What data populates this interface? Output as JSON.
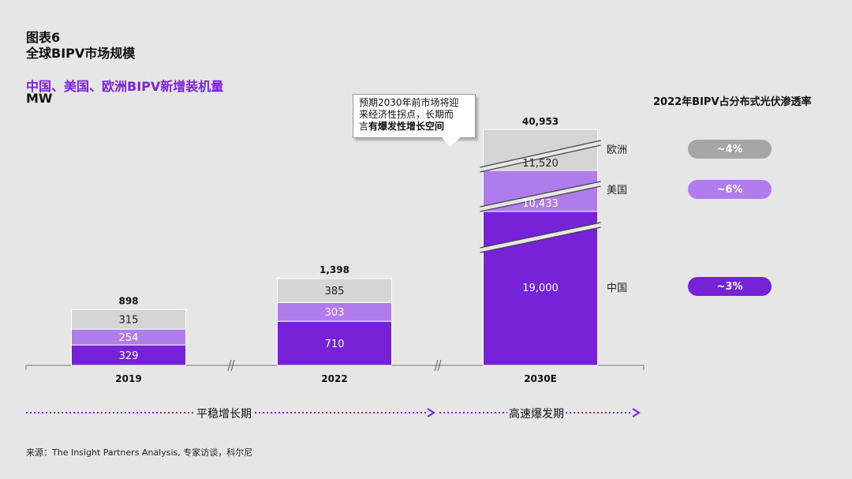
{
  "header": {
    "line1": "图表6",
    "line2": "全球BIPV市场规模",
    "subtitle": "中国、美国、欧洲BIPV新增装机量",
    "unit": "MW"
  },
  "callout": {
    "line1": "预期2030年前市场将迎",
    "line2": "来经济性拐点，长期而",
    "line3_prefix": "言",
    "line3_bold": "有爆发性增长空间"
  },
  "penetration": {
    "title": "2022年BIPV占分布式光伏渗透率",
    "items": [
      {
        "region": "欧洲",
        "value": "~4%",
        "color": "#a6a6a6"
      },
      {
        "region": "美国",
        "value": "~6%",
        "color": "#b07cec"
      },
      {
        "region": "中国",
        "value": "~3%",
        "color": "#7522d9"
      }
    ]
  },
  "phases": {
    "steady": "平稳增长期",
    "explosive": "高速爆发期"
  },
  "source": "来源：The Insight Partners Analysis, 专家访谈，科尔尼",
  "colors": {
    "china": "#7522d9",
    "usa": "#b07cec",
    "europe": "#d5d5d5",
    "accent": "#7a22e0"
  },
  "chart_data": {
    "type": "bar",
    "stacked": true,
    "categories": [
      "2019",
      "2022",
      "2030E"
    ],
    "series": [
      {
        "name": "中国",
        "values": [
          329,
          710,
          19000
        ]
      },
      {
        "name": "美国",
        "values": [
          254,
          303,
          10433
        ]
      },
      {
        "name": "欧洲",
        "values": [
          315,
          385,
          11520
        ]
      }
    ],
    "series_labels": [
      "中国",
      "美国",
      "欧洲"
    ],
    "value_labels": [
      [
        "329",
        "710",
        "19,000"
      ],
      [
        "254",
        "303",
        "10,433"
      ],
      [
        "315",
        "385",
        "11,520"
      ]
    ],
    "totals": [
      "898",
      "1,398",
      "40,953"
    ],
    "axis_breaks": true,
    "grid": false,
    "legend": "right-side labels"
  }
}
